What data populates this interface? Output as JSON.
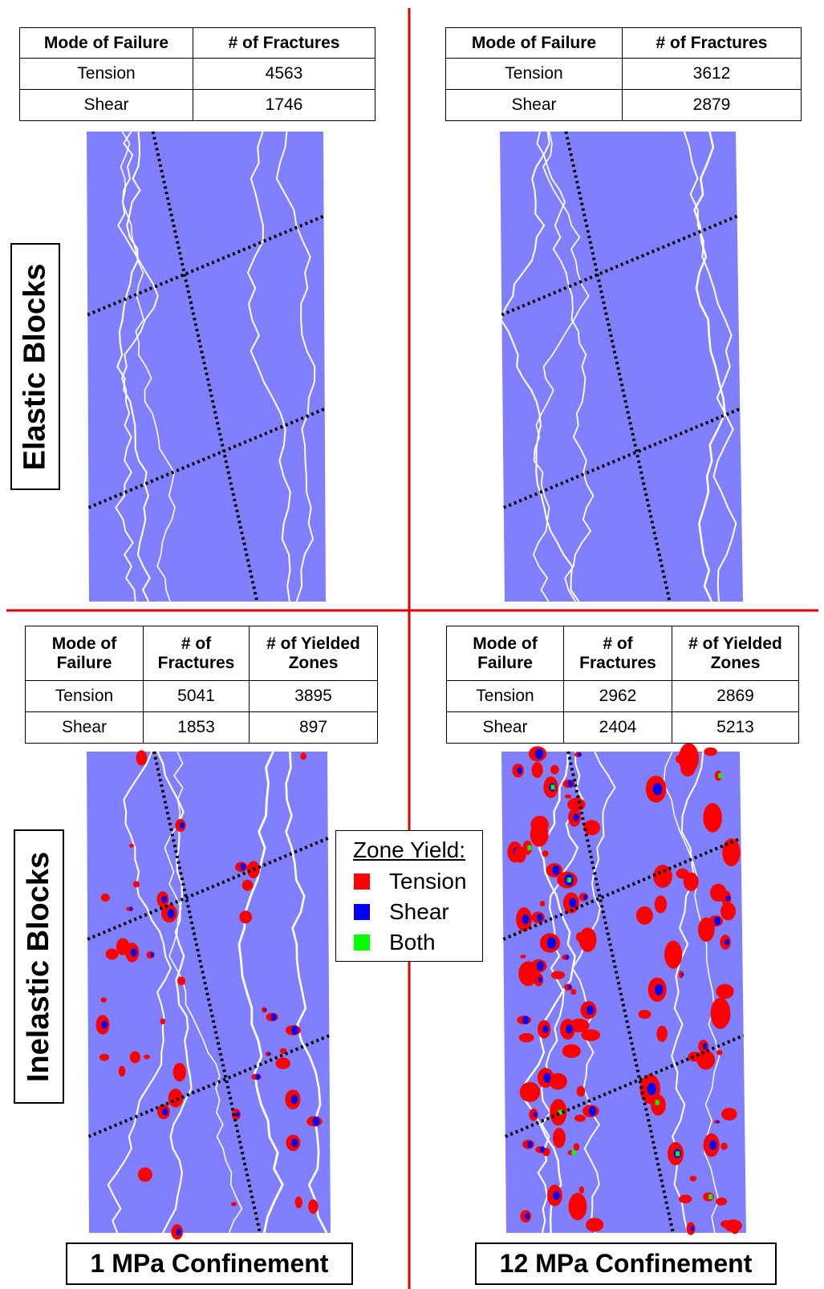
{
  "quadrants": [
    {
      "table": {
        "headers": [
          "Mode of Failure",
          "# of Fractures"
        ],
        "rows": [
          [
            "Tension",
            4563
          ],
          [
            "Shear",
            1746
          ]
        ]
      }
    },
    {
      "table": {
        "headers": [
          "Mode of Failure",
          "# of Fractures"
        ],
        "rows": [
          [
            "Tension",
            3612
          ],
          [
            "Shear",
            2879
          ]
        ]
      }
    },
    {
      "table": {
        "headers": [
          "Mode of Failure",
          "# of Fractures",
          "# of Yielded Zones"
        ],
        "rows": [
          [
            "Tension",
            5041,
            3895
          ],
          [
            "Shear",
            1853,
            897
          ]
        ]
      }
    },
    {
      "table": {
        "headers": [
          "Mode of Failure",
          "# of Fractures",
          "# of Yielded Zones"
        ],
        "rows": [
          [
            "Tension",
            2962,
            2869
          ],
          [
            "Shear",
            2404,
            5213
          ]
        ]
      }
    }
  ],
  "row_labels": [
    "Elastic Blocks",
    "Inelastic Blocks"
  ],
  "column_labels": [
    "1 MPa Confinement",
    "12 MPa Confinement"
  ],
  "legend": {
    "title": "Zone Yield:",
    "items": [
      {
        "label": "Tension",
        "color": "#ff0000"
      },
      {
        "label": "Shear",
        "color": "#0000ff"
      },
      {
        "label": "Both",
        "color": "#00ff00"
      }
    ]
  }
}
